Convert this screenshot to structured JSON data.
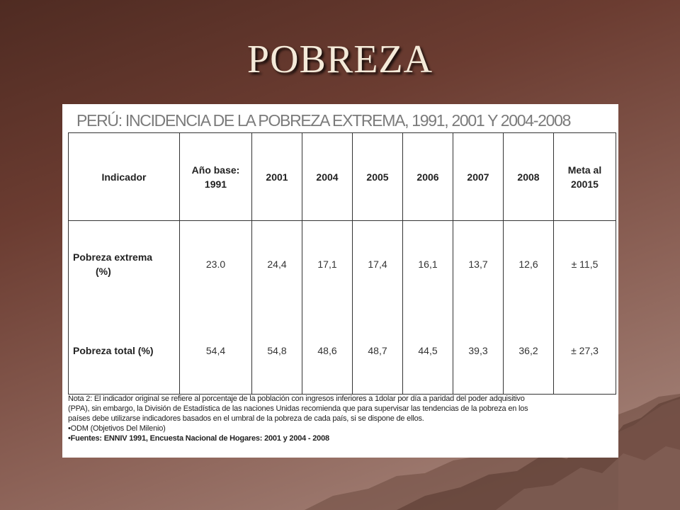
{
  "slide": {
    "title": "POBREZA"
  },
  "table": {
    "title": "PERÚ: INCIDENCIA DE LA POBREZA EXTREMA, 1991, 2001 Y 2004-2008",
    "headers": [
      [
        "Indicador"
      ],
      [
        "Año base:",
        "1991"
      ],
      [
        "2001"
      ],
      [
        "2004"
      ],
      [
        "2005"
      ],
      [
        "2006"
      ],
      [
        "2007"
      ],
      [
        "2008"
      ],
      [
        "Meta al",
        "20015"
      ]
    ],
    "rows": [
      {
        "label": [
          "Pobreza extrema",
          "(%)"
        ],
        "values": [
          "23.0",
          "24,4",
          "17,1",
          "17,4",
          "16,1",
          "13,7",
          "12,6",
          "±  11,5"
        ]
      },
      {
        "label": [
          "Pobreza total (%)"
        ],
        "values": [
          "54,4",
          "54,8",
          "48,6",
          "48,7",
          "44,5",
          "39,3",
          "36,2",
          "±  27,3"
        ]
      }
    ]
  },
  "notes": {
    "note_lines": [
      "Nota 2: El indicador original se refiere al porcentaje de la población con ingresos inferiores a 1dolar por día a paridad del poder adquisitivo",
      "(PPA), sin embargo, la División de Estadística de las naciones Unidas recomienda que para supervisar las tendencias de la pobreza en los",
      "países debe utilizarse indicadores basados en el umbral de la pobreza de cada país, si se dispone de ellos."
    ],
    "odm": "•ODM (Objetivos Del Milenio)",
    "source": "•Fuentes: ENNIV 1991, Encuesta Nacional de Hogares: 2001 y 2004 - 2008"
  }
}
